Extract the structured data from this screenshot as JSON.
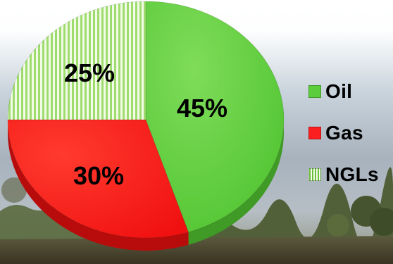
{
  "chart_data": {
    "type": "pie",
    "title": "",
    "slices": [
      {
        "name": "Oil",
        "value": 45,
        "label": "45%",
        "color": "#5ccd3c"
      },
      {
        "name": "Gas",
        "value": 30,
        "label": "30%",
        "color": "#fb1f1f"
      },
      {
        "name": "NGLs",
        "value": 25,
        "label": "25%",
        "color": "#a6e27a",
        "pattern": "vertical-stripes"
      }
    ],
    "start_angle_deg": 0,
    "direction": "clockwise",
    "style": "3d-tilted",
    "legend_position": "right"
  },
  "legend": {
    "items": [
      {
        "label": "Oil",
        "icon": "solid-green-swatch"
      },
      {
        "label": "Gas",
        "icon": "solid-red-swatch"
      },
      {
        "label": "NGLs",
        "icon": "striped-green-swatch"
      }
    ]
  },
  "background": {
    "sky": "#8a96a6",
    "ground": "#4f4a35",
    "description_icon": "landscape-photo"
  }
}
